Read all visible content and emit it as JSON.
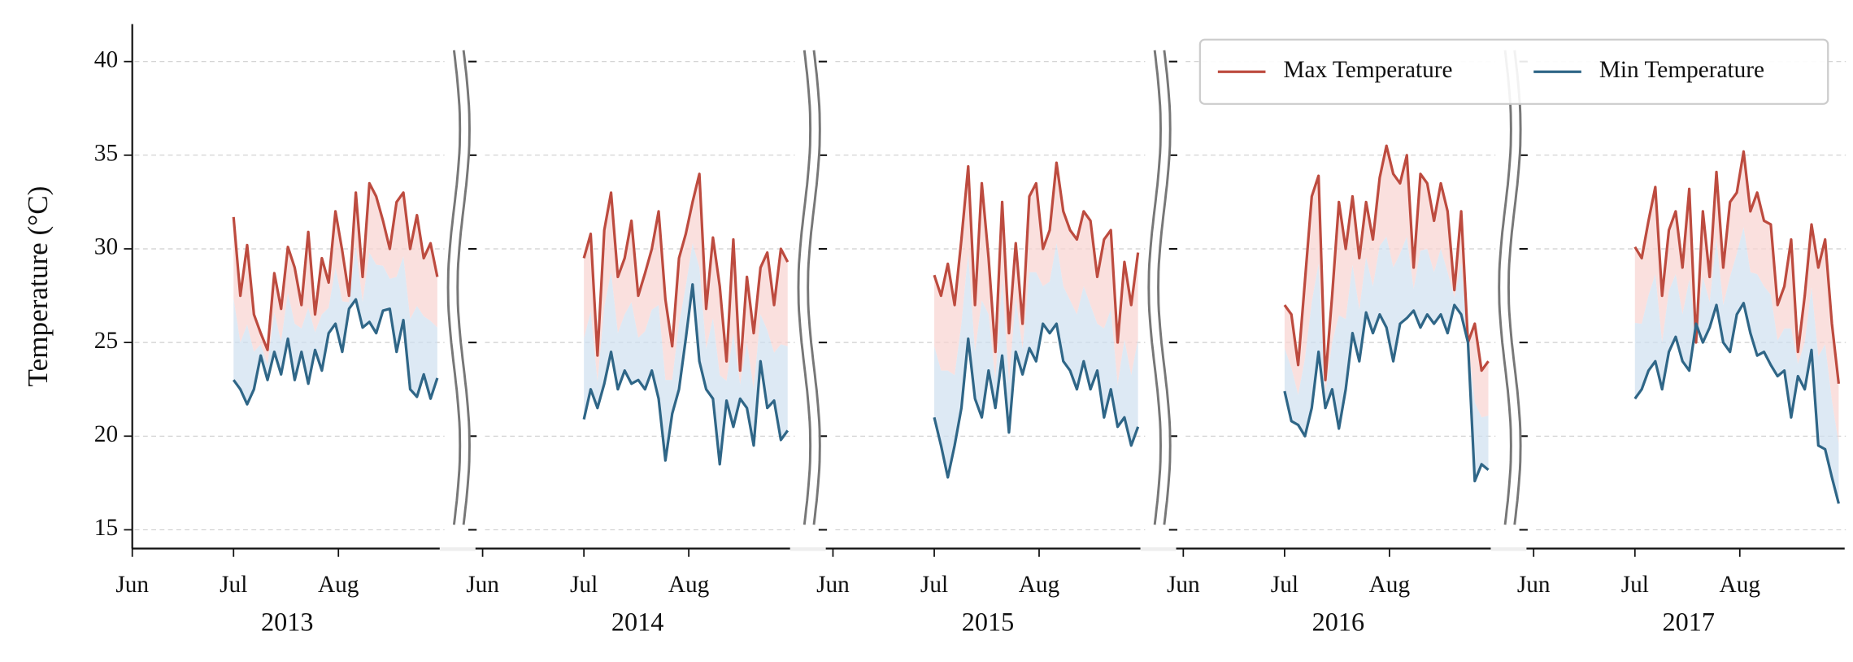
{
  "chart_data": [
    {
      "type": "line",
      "ylabel": "Temperature (°C)",
      "ylim": [
        14,
        42
      ],
      "yticks": [
        15,
        20,
        25,
        30,
        35,
        40
      ],
      "grid": true,
      "legend": "upper right",
      "x_label": "2013",
      "xtick_labels": [
        "Jun",
        "Jul",
        "Aug"
      ],
      "series": [
        {
          "name": "Max Temperature",
          "color": "#bd4b3f",
          "values": [
            31.7,
            27.5,
            30.2,
            26.5,
            25.5,
            24.6,
            28.7,
            26.8,
            30.1,
            29.0,
            27.0,
            30.9,
            26.5,
            29.5,
            28.2,
            32.0,
            29.9,
            27.5,
            33.0,
            28.5,
            33.5,
            32.8,
            31.5,
            30.0,
            32.5,
            33.0,
            30.0,
            31.8,
            29.5,
            30.3,
            28.5
          ]
        },
        {
          "name": "Min Temperature",
          "color": "#2f6687",
          "values": [
            23.0,
            22.5,
            21.7,
            22.5,
            24.3,
            23.0,
            24.5,
            23.3,
            25.2,
            23.0,
            24.5,
            22.8,
            24.6,
            23.5,
            25.5,
            26.0,
            24.5,
            26.8,
            27.3,
            25.8,
            26.1,
            25.5,
            26.7,
            26.8,
            24.5,
            26.2,
            22.5,
            22.1,
            23.3,
            22.0,
            23.1
          ]
        }
      ]
    },
    {
      "type": "line",
      "x_label": "2014",
      "xtick_labels": [
        "Jun",
        "Jul",
        "Aug"
      ],
      "series": [
        {
          "name": "Max Temperature",
          "color": "#bd4b3f",
          "values": [
            29.5,
            30.8,
            24.3,
            31.0,
            33.0,
            28.5,
            29.5,
            31.5,
            27.5,
            28.7,
            30.0,
            32.0,
            27.3,
            24.8,
            29.5,
            30.8,
            32.5,
            34.0,
            26.8,
            30.6,
            28.0,
            24.0,
            30.5,
            23.5,
            28.5,
            25.5,
            29.0,
            29.8,
            27.0,
            30.0,
            29.3
          ]
        },
        {
          "name": "Min Temperature",
          "color": "#2f6687",
          "values": [
            20.9,
            22.5,
            21.5,
            22.8,
            24.5,
            22.5,
            23.5,
            22.8,
            23.0,
            22.5,
            23.5,
            22.0,
            18.7,
            21.2,
            22.5,
            25.2,
            28.1,
            24.0,
            22.5,
            22.0,
            18.5,
            21.9,
            20.5,
            22.0,
            21.5,
            19.5,
            24.0,
            21.5,
            21.9,
            19.8,
            20.3
          ]
        }
      ]
    },
    {
      "type": "line",
      "x_label": "2015",
      "xtick_labels": [
        "Jun",
        "Jul",
        "Aug"
      ],
      "series": [
        {
          "name": "Max Temperature",
          "color": "#bd4b3f",
          "values": [
            28.6,
            27.5,
            29.2,
            27.0,
            30.5,
            34.4,
            27.0,
            33.5,
            29.5,
            24.5,
            32.5,
            25.5,
            30.3,
            26.0,
            32.8,
            33.5,
            30.0,
            31.0,
            34.6,
            32.0,
            31.0,
            30.5,
            32.0,
            31.5,
            28.5,
            30.5,
            31.0,
            25.0,
            29.3,
            27.0,
            29.8
          ]
        },
        {
          "name": "Min Temperature",
          "color": "#2f6687",
          "values": [
            21.0,
            19.5,
            17.8,
            19.5,
            21.5,
            25.2,
            22.0,
            21.0,
            23.5,
            21.5,
            24.3,
            20.2,
            24.5,
            23.3,
            24.7,
            24.0,
            26.0,
            25.5,
            26.0,
            24.0,
            23.5,
            22.5,
            24.0,
            22.5,
            23.5,
            21.0,
            22.5,
            20.5,
            21.0,
            19.5,
            20.5
          ]
        }
      ]
    },
    {
      "type": "line",
      "x_label": "2016",
      "xtick_labels": [
        "Jun",
        "Jul",
        "Aug"
      ],
      "series": [
        {
          "name": "Max Temperature",
          "color": "#bd4b3f",
          "values": [
            27.0,
            26.5,
            23.8,
            28.3,
            32.8,
            33.9,
            23.0,
            27.5,
            32.5,
            30.0,
            32.8,
            29.5,
            32.5,
            30.5,
            33.8,
            35.5,
            34.0,
            33.5,
            35.0,
            29.0,
            34.0,
            33.5,
            31.5,
            33.5,
            32.0,
            27.8,
            32.0,
            25.0,
            26.0,
            23.5,
            24.0
          ]
        },
        {
          "name": "Min Temperature",
          "color": "#2f6687",
          "values": [
            22.4,
            20.8,
            20.6,
            20.0,
            21.5,
            24.5,
            21.5,
            22.5,
            20.4,
            22.5,
            25.5,
            24.0,
            26.6,
            25.5,
            26.5,
            25.8,
            24.0,
            26.0,
            26.3,
            26.7,
            25.8,
            26.5,
            26.0,
            26.5,
            25.5,
            27.0,
            26.5,
            25.0,
            17.6,
            18.5,
            18.2
          ]
        }
      ]
    },
    {
      "type": "line",
      "x_label": "2017",
      "xtick_labels": [
        "Jun",
        "Jul",
        "Aug"
      ],
      "series": [
        {
          "name": "Max Temperature",
          "color": "#bd4b3f",
          "values": [
            30.1,
            29.5,
            31.5,
            33.3,
            27.5,
            31.0,
            32.0,
            29.0,
            33.2,
            25.0,
            32.0,
            28.5,
            34.1,
            29.0,
            32.5,
            33.0,
            35.2,
            32.0,
            33.0,
            31.5,
            31.3,
            27.0,
            28.0,
            30.5,
            24.5,
            27.5,
            31.3,
            29.0,
            30.5,
            26.0,
            22.8
          ]
        },
        {
          "name": "Min Temperature",
          "color": "#2f6687",
          "values": [
            22.0,
            22.5,
            23.5,
            24.0,
            22.5,
            24.5,
            25.3,
            24.0,
            23.5,
            26.0,
            25.0,
            25.8,
            27.0,
            25.0,
            24.5,
            26.5,
            27.1,
            25.5,
            24.3,
            24.5,
            23.8,
            23.2,
            23.5,
            21.0,
            23.2,
            22.5,
            24.6,
            19.5,
            19.3,
            17.8,
            16.4
          ]
        }
      ]
    }
  ]
}
